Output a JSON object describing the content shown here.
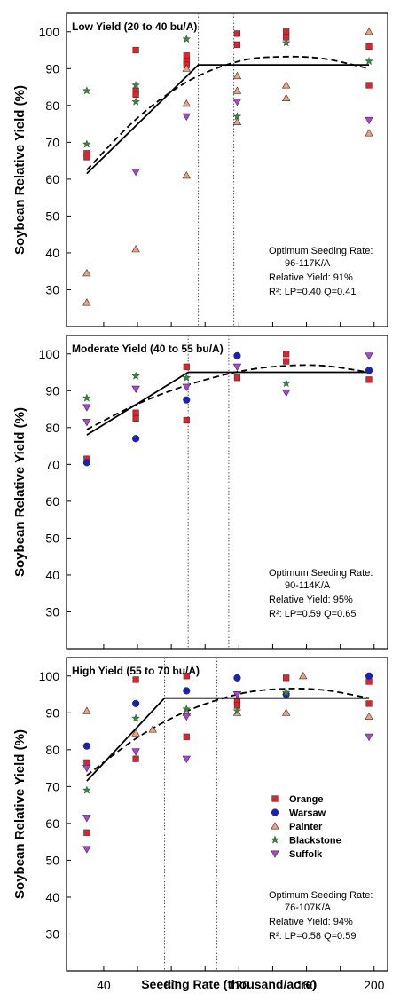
{
  "colors": {
    "Orange": "#e8202a",
    "Warsaw": "#1520c8",
    "Painter": "#f0a07a",
    "Blackstone": "#2e8b3a",
    "Suffolk": "#b040e0"
  },
  "markers": {
    "Orange": "square",
    "Warsaw": "circle",
    "Painter": "triangle-up",
    "Blackstone": "star",
    "Suffolk": "triangle-down"
  },
  "legend": [
    "Orange",
    "Warsaw",
    "Painter",
    "Blackstone",
    "Suffolk"
  ],
  "x_axis_title": "Seeding Rate (thousand/acre)",
  "chart_data": [
    {
      "type": "scatter",
      "title": "Low Yield (20 to 40 bu/A)",
      "ylabel": "Soybean Relative Yield (%)",
      "xlim": [
        18,
        208
      ],
      "ylim": [
        20,
        105
      ],
      "xticks": [
        40,
        60,
        80,
        100,
        120,
        140,
        160,
        180,
        200
      ],
      "yticks": [
        30,
        40,
        50,
        60,
        70,
        80,
        90,
        100
      ],
      "optimum_range": [
        96,
        117
      ],
      "linear_plateau": {
        "x": [
          30,
          96,
          197
        ],
        "y": [
          61.5,
          91,
          91
        ]
      },
      "quadratic": {
        "x": [
          30,
          60,
          90,
          120,
          145,
          170,
          197
        ],
        "y": [
          62.5,
          76.6,
          86.6,
          92.0,
          93.2,
          92.7,
          90.0
        ]
      },
      "series": [
        {
          "name": "Orange",
          "x": [
            30,
            30,
            59,
            59,
            59,
            89,
            89,
            89,
            119,
            119,
            148,
            148,
            197,
            197
          ],
          "y": [
            67,
            66,
            95,
            84,
            83,
            93.5,
            92,
            91,
            99.5,
            96.5,
            100,
            98.5,
            96,
            85.5
          ]
        },
        {
          "name": "Painter",
          "x": [
            30,
            30,
            59,
            89,
            89,
            89,
            119,
            119,
            119,
            148,
            148,
            197,
            197
          ],
          "y": [
            34.5,
            26.5,
            41,
            90,
            80.5,
            61,
            88,
            84,
            75.5,
            85.5,
            82,
            100,
            72.5
          ]
        },
        {
          "name": "Blackstone",
          "x": [
            30,
            30,
            59,
            59,
            89,
            119,
            148,
            197
          ],
          "y": [
            84,
            69.5,
            85.5,
            81,
            98,
            77,
            97,
            92
          ]
        },
        {
          "name": "Suffolk",
          "x": [
            59,
            89,
            119,
            197
          ],
          "y": [
            62,
            77,
            81,
            76
          ]
        }
      ],
      "annotation": [
        "Optimum Seeding Rate:",
        "96-117K/A",
        "Relative Yield: 91%",
        "R²: LP=0.40  Q=0.41"
      ]
    },
    {
      "type": "scatter",
      "title": "Moderate Yield (40 to 55 bu/A)",
      "ylabel": "Soybean Relative Yield (%)",
      "xlim": [
        18,
        208
      ],
      "ylim": [
        20,
        105
      ],
      "xticks": [
        40,
        60,
        80,
        100,
        120,
        140,
        160,
        180,
        200
      ],
      "yticks": [
        30,
        40,
        50,
        60,
        70,
        80,
        90,
        100
      ],
      "optimum_range": [
        90,
        114
      ],
      "linear_plateau": {
        "x": [
          30,
          90,
          197
        ],
        "y": [
          78,
          95,
          95
        ]
      },
      "quadratic": {
        "x": [
          30,
          60,
          90,
          120,
          145,
          170,
          197
        ],
        "y": [
          79.5,
          86.4,
          91.6,
          95.2,
          96.7,
          96.8,
          95.0
        ]
      },
      "series": [
        {
          "name": "Orange",
          "x": [
            30,
            59,
            59,
            89,
            89,
            119,
            148,
            148,
            197
          ],
          "y": [
            71.5,
            84,
            82.5,
            96.5,
            82,
            93.5,
            100,
            98,
            93
          ]
        },
        {
          "name": "Warsaw",
          "x": [
            30,
            59,
            89,
            119,
            197
          ],
          "y": [
            70.5,
            77,
            87.5,
            99.5,
            95.5
          ]
        },
        {
          "name": "Blackstone",
          "x": [
            30,
            59,
            89,
            148
          ],
          "y": [
            88,
            94,
            93.5,
            92
          ]
        },
        {
          "name": "Suffolk",
          "x": [
            30,
            30,
            59,
            89,
            119,
            148,
            197
          ],
          "y": [
            85.5,
            81.5,
            90.5,
            91,
            96.5,
            89.5,
            99.5
          ]
        }
      ],
      "annotation": [
        "Optimum Seeding Rate:",
        "90-114K/A",
        "Relative Yield: 95%",
        "R²: LP=0.59  Q=0.65"
      ]
    },
    {
      "type": "scatter",
      "title": "High Yield (55 to 70 bu/A)",
      "ylabel": "Soybean Relative Yield (%)",
      "xlabel": "Seeding Rate (thousand/acre)",
      "xlim": [
        18,
        208
      ],
      "ylim": [
        20,
        105
      ],
      "xticks": [
        40,
        60,
        80,
        100,
        120,
        140,
        160,
        180,
        200
      ],
      "yticks": [
        30,
        40,
        50,
        60,
        70,
        80,
        90,
        100
      ],
      "optimum_range": [
        76,
        107
      ],
      "linear_plateau": {
        "x": [
          30,
          76,
          197
        ],
        "y": [
          71.5,
          94,
          94
        ]
      },
      "quadratic": {
        "x": [
          30,
          60,
          90,
          120,
          145,
          170,
          197
        ],
        "y": [
          73,
          83.3,
          90.6,
          95.1,
          96.5,
          96.2,
          94.0
        ]
      },
      "series": [
        {
          "name": "Orange",
          "x": [
            30,
            30,
            59,
            59,
            89,
            89,
            119,
            119,
            148,
            197,
            197
          ],
          "y": [
            76.5,
            57.5,
            99,
            77.5,
            100,
            83.5,
            93,
            92,
            99.5,
            98.5,
            92.5
          ]
        },
        {
          "name": "Warsaw",
          "x": [
            30,
            59,
            89,
            119,
            148,
            197
          ],
          "y": [
            81,
            92.5,
            96,
            99.5,
            95,
            100
          ]
        },
        {
          "name": "Painter",
          "x": [
            30,
            59,
            69,
            89,
            119,
            148,
            158,
            197
          ],
          "y": [
            90.5,
            84.5,
            85.5,
            90,
            90,
            90,
            100,
            89
          ]
        },
        {
          "name": "Blackstone",
          "x": [
            30,
            59,
            89,
            119,
            148
          ],
          "y": [
            69,
            88.5,
            91,
            90.5,
            95.5
          ]
        },
        {
          "name": "Suffolk",
          "x": [
            30,
            30,
            30,
            59,
            89,
            89,
            119,
            197
          ],
          "y": [
            75,
            61.5,
            53,
            79.5,
            89,
            77.5,
            95,
            83.5
          ]
        }
      ],
      "annotation": [
        "Optimum Seeding Rate:",
        "76-107K/A",
        "Relative Yield: 94%",
        "R²: LP=0.58  Q=0.59"
      ]
    }
  ]
}
